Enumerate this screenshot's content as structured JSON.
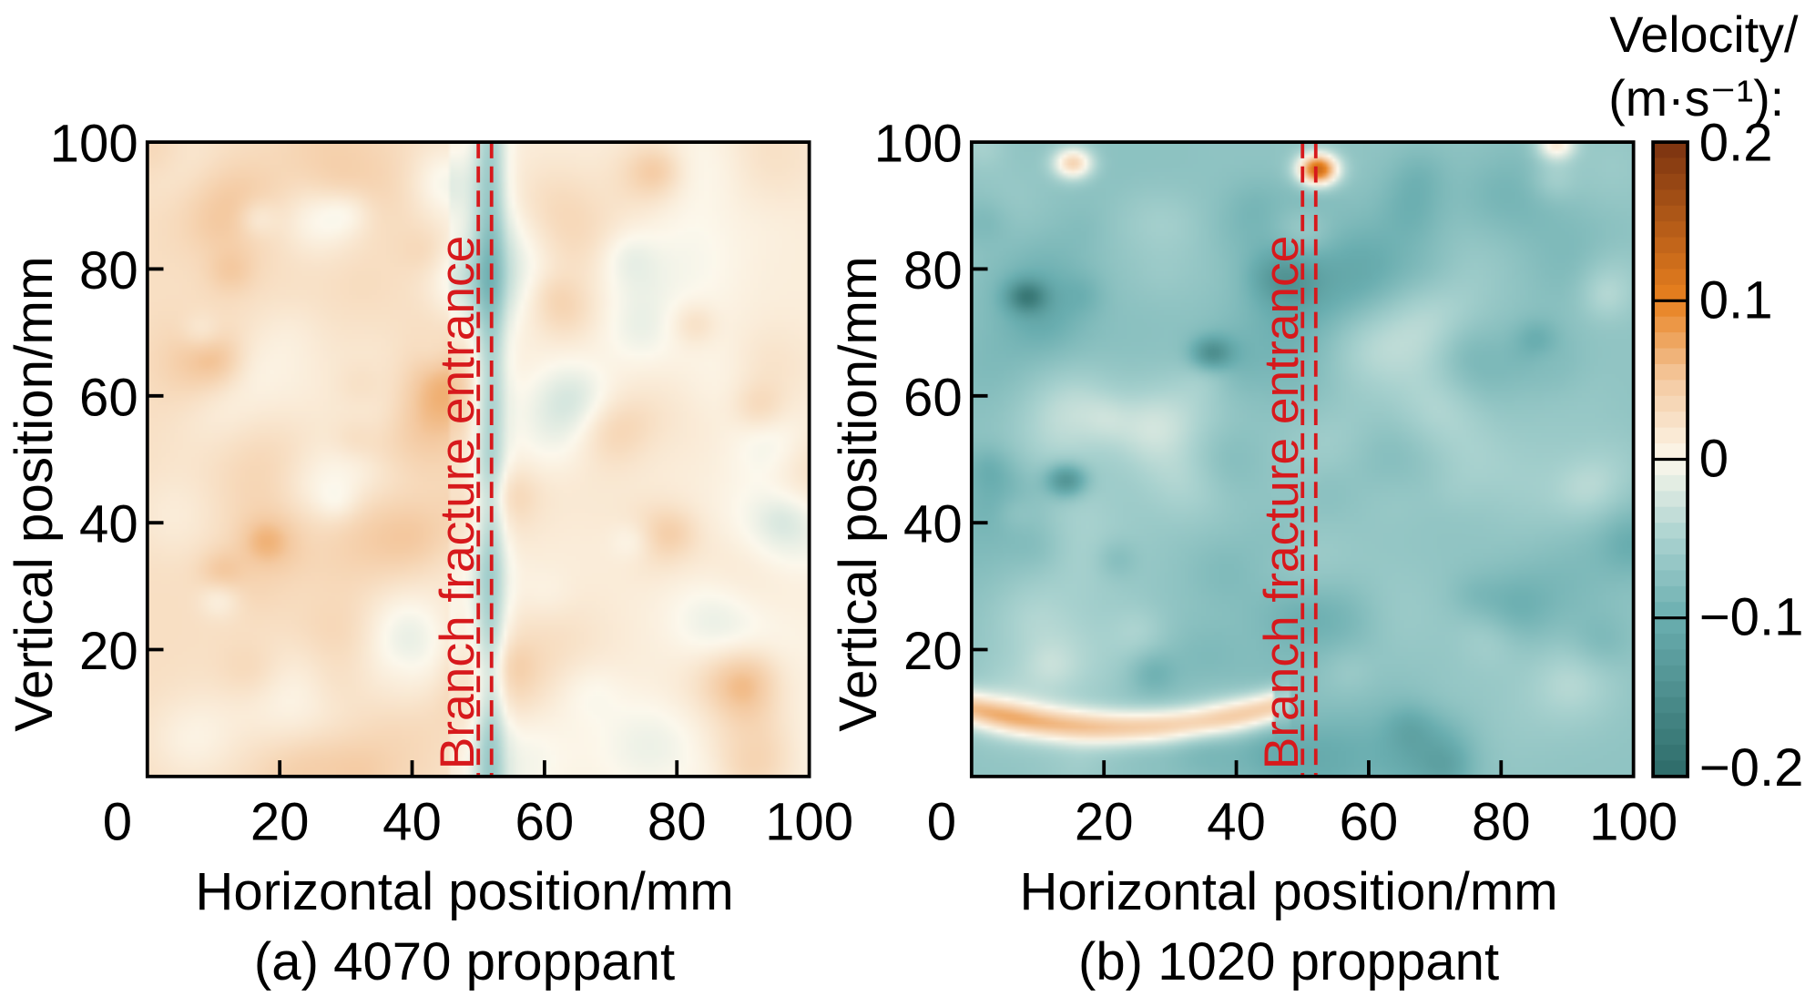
{
  "chart_data": [
    {
      "type": "heatmap",
      "panel": "a",
      "caption": "(a) 4070 proppant",
      "xlabel": "Horizontal position/mm",
      "ylabel": "Vertical position/mm",
      "xlim": [
        0,
        100
      ],
      "ylim": [
        0,
        100
      ],
      "xticks": [
        "0",
        "20",
        "40",
        "60",
        "80",
        "100"
      ],
      "yticks": [
        "20",
        "40",
        "60",
        "80",
        "100"
      ],
      "annotation": "Branch fracture entrance",
      "entrance_lines_x": [
        50,
        52
      ],
      "field": {
        "base_value": 0.015,
        "features": [
          {
            "kind": "region",
            "x": [
              0,
              45
            ],
            "y": [
              0,
              100
            ],
            "value": 0.03
          },
          {
            "kind": "band",
            "x": [
              49,
              54
            ],
            "y": [
              0,
              100
            ],
            "value": -0.05
          },
          {
            "kind": "region",
            "x": [
              55,
              100
            ],
            "y": [
              0,
              100
            ],
            "value": 0.01
          }
        ]
      }
    },
    {
      "type": "heatmap",
      "panel": "b",
      "caption": "(b) 1020 proppant",
      "xlabel": "Horizontal position/mm",
      "ylabel": "Vertical position/mm",
      "xlim": [
        0,
        100
      ],
      "ylim": [
        0,
        100
      ],
      "xticks": [
        "0",
        "20",
        "40",
        "60",
        "80",
        "100"
      ],
      "yticks": [
        "20",
        "40",
        "60",
        "80",
        "100"
      ],
      "annotation": "Branch fracture entrance",
      "entrance_lines_x": [
        50,
        52
      ],
      "field": {
        "base_value": -0.07,
        "features": [
          {
            "kind": "arc",
            "x": [
              0,
              45
            ],
            "y_min": 8,
            "value": 0.05
          },
          {
            "kind": "spot",
            "x": 52,
            "y": 96,
            "value": 0.13
          },
          {
            "kind": "spot",
            "x": 15,
            "y": 97,
            "value": 0.04
          },
          {
            "kind": "spot",
            "x": 88,
            "y": 100,
            "value": 0.02
          },
          {
            "kind": "spot",
            "x": 8,
            "y": 76,
            "value": -0.15
          },
          {
            "kind": "spot",
            "x": 14,
            "y": 47,
            "value": -0.15
          },
          {
            "kind": "spot",
            "x": 36,
            "y": 67,
            "value": -0.14
          }
        ]
      }
    }
  ],
  "colorbar": {
    "title_line1": "Velocity/",
    "title_line2": "(m·s⁻¹):",
    "ticks": [
      "0.2",
      "0.1",
      "0",
      "−0.1",
      "−0.2"
    ],
    "tick_values": [
      0.2,
      0.1,
      0,
      -0.1,
      -0.2
    ],
    "range": [
      -0.2,
      0.2
    ],
    "colors": {
      "-0.2": "#2d6b68",
      "-0.1": "#6aaeb0",
      "-0.05": "#a9d2cf",
      "0": "#fcf8ec",
      "0.05": "#f4c9a0",
      "0.1": "#e8811f",
      "0.2": "#7a3210"
    }
  },
  "annotation_color": "#d7191c"
}
